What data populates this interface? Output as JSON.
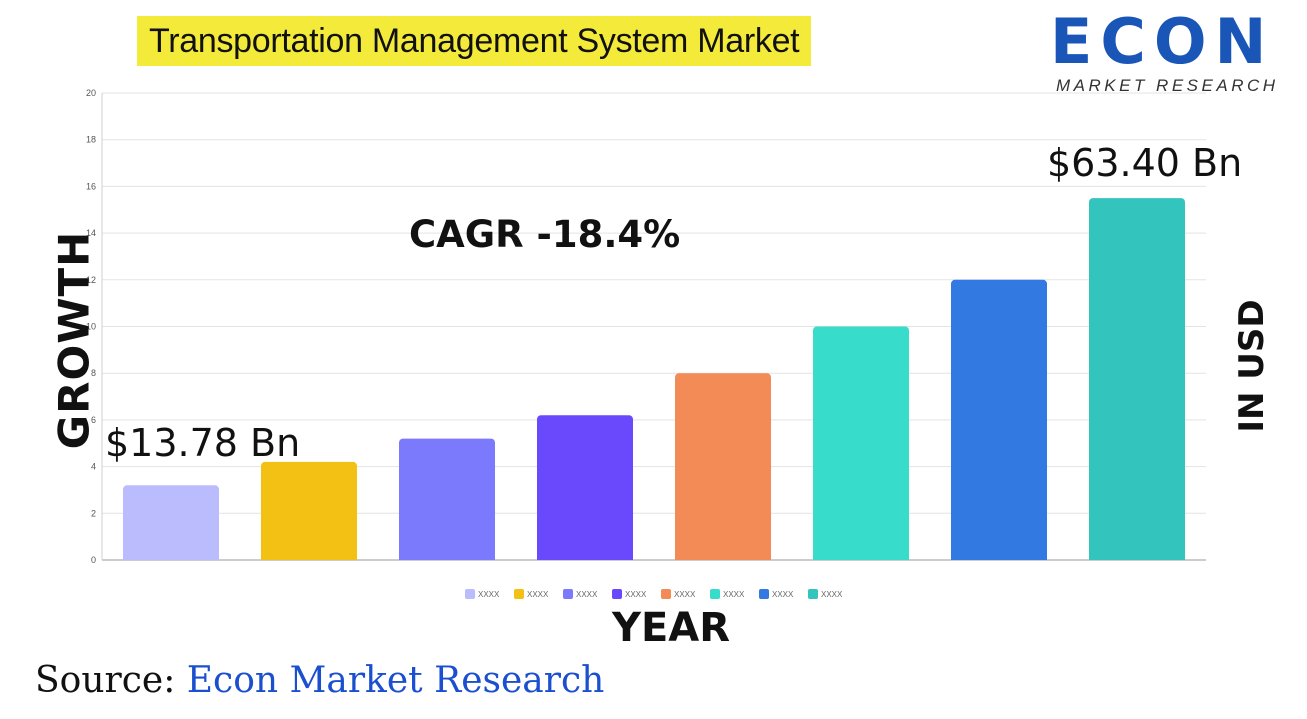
{
  "title": "Transportation Management System Market",
  "logo": {
    "brand": "ECON",
    "tagline": "MARKET RESEARCH"
  },
  "annotations": {
    "cagr": "CAGR -18.4%",
    "start_value": "$13.78 Bn",
    "end_value": "$63.40 Bn"
  },
  "axis_titles": {
    "left": "GROWTH",
    "right": "IN USD",
    "bottom": "YEAR"
  },
  "source": {
    "label": "Source:",
    "value": "Econ Market Research"
  },
  "chart_data": {
    "type": "bar",
    "title": "Transportation Management System Market",
    "xlabel": "YEAR",
    "ylabel": "GROWTH",
    "ylim": [
      0,
      20
    ],
    "yticks": [
      0,
      2,
      4,
      6,
      8,
      10,
      12,
      14,
      16,
      18,
      20
    ],
    "grid": true,
    "legend_position": "bottom",
    "series": [
      {
        "name": "XXXX",
        "value": 3.2,
        "color": "#babcfd"
      },
      {
        "name": "XXXX",
        "value": 4.2,
        "color": "#f2c113"
      },
      {
        "name": "XXXX",
        "value": 5.2,
        "color": "#7b7afd"
      },
      {
        "name": "XXXX",
        "value": 6.2,
        "color": "#6a48fc"
      },
      {
        "name": "XXXX",
        "value": 8.0,
        "color": "#f28b56"
      },
      {
        "name": "XXXX",
        "value": 10.0,
        "color": "#38dccb"
      },
      {
        "name": "XXXX",
        "value": 12.0,
        "color": "#3279e2"
      },
      {
        "name": "XXXX",
        "value": 15.5,
        "color": "#33c4bd"
      }
    ]
  }
}
